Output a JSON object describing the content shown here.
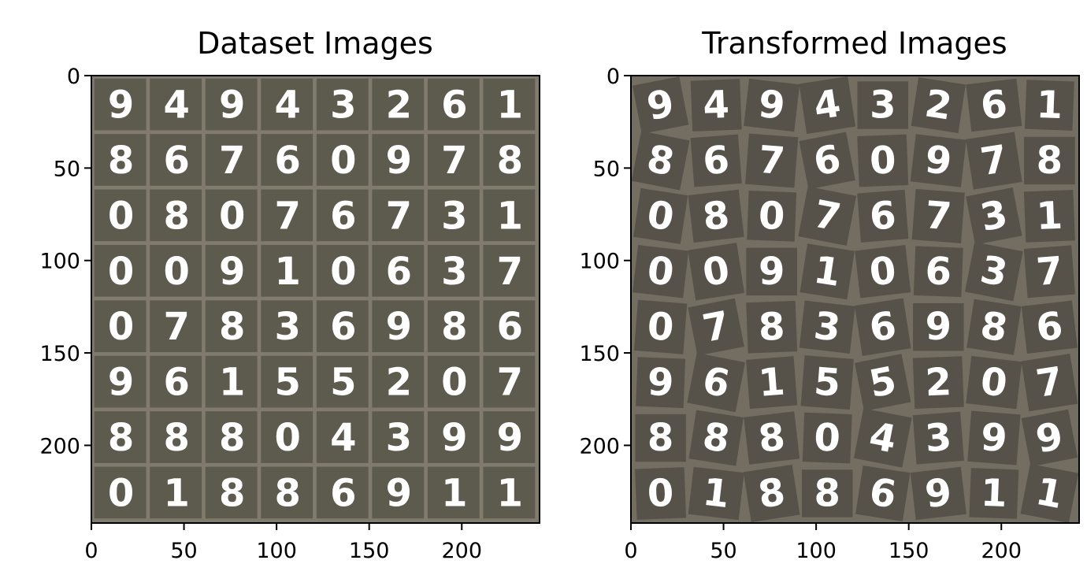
{
  "chart_data": [
    {
      "type": "image-grid",
      "title": "Dataset Images",
      "xlim": [
        0,
        242
      ],
      "ylim": [
        242,
        0
      ],
      "xticks": [
        0,
        50,
        100,
        150,
        200
      ],
      "yticks": [
        0,
        50,
        100,
        150,
        200
      ],
      "grid_rows": 8,
      "grid_cols": 8,
      "cell_size": 30,
      "background_color": "#5d5a4e",
      "separator_color": "#807b6c",
      "transformed": false,
      "digits": [
        [
          "9",
          "4",
          "9",
          "4",
          "3",
          "2",
          "6",
          "1"
        ],
        [
          "8",
          "6",
          "7",
          "6",
          "0",
          "9",
          "7",
          "8"
        ],
        [
          "0",
          "8",
          "0",
          "7",
          "6",
          "7",
          "3",
          "1"
        ],
        [
          "0",
          "0",
          "9",
          "1",
          "0",
          "6",
          "3",
          "7"
        ],
        [
          "0",
          "7",
          "8",
          "3",
          "6",
          "9",
          "8",
          "6"
        ],
        [
          "9",
          "6",
          "1",
          "5",
          "5",
          "2",
          "0",
          "7"
        ],
        [
          "8",
          "8",
          "8",
          "0",
          "4",
          "3",
          "9",
          "9"
        ],
        [
          "0",
          "1",
          "8",
          "8",
          "6",
          "9",
          "1",
          "1"
        ]
      ]
    },
    {
      "type": "image-grid",
      "title": "Transformed Images",
      "xlim": [
        0,
        242
      ],
      "ylim": [
        242,
        0
      ],
      "xticks": [
        0,
        50,
        100,
        150,
        200
      ],
      "yticks": [
        0,
        50,
        100,
        150,
        200
      ],
      "grid_rows": 8,
      "grid_cols": 8,
      "cell_size": 30,
      "background_color": "#746e62",
      "tile_color": "#56524a",
      "transformed": true,
      "digits": [
        [
          "9",
          "4",
          "9",
          "4",
          "3",
          "2",
          "6",
          "1"
        ],
        [
          "8",
          "6",
          "7",
          "6",
          "0",
          "9",
          "7",
          "8"
        ],
        [
          "0",
          "8",
          "0",
          "7",
          "6",
          "7",
          "3",
          "1"
        ],
        [
          "0",
          "0",
          "9",
          "1",
          "0",
          "6",
          "3",
          "7"
        ],
        [
          "0",
          "7",
          "8",
          "3",
          "6",
          "9",
          "8",
          "6"
        ],
        [
          "9",
          "6",
          "1",
          "5",
          "5",
          "2",
          "0",
          "7"
        ],
        [
          "8",
          "8",
          "8",
          "0",
          "4",
          "3",
          "9",
          "9"
        ],
        [
          "0",
          "1",
          "8",
          "8",
          "6",
          "9",
          "1",
          "1"
        ]
      ]
    }
  ]
}
